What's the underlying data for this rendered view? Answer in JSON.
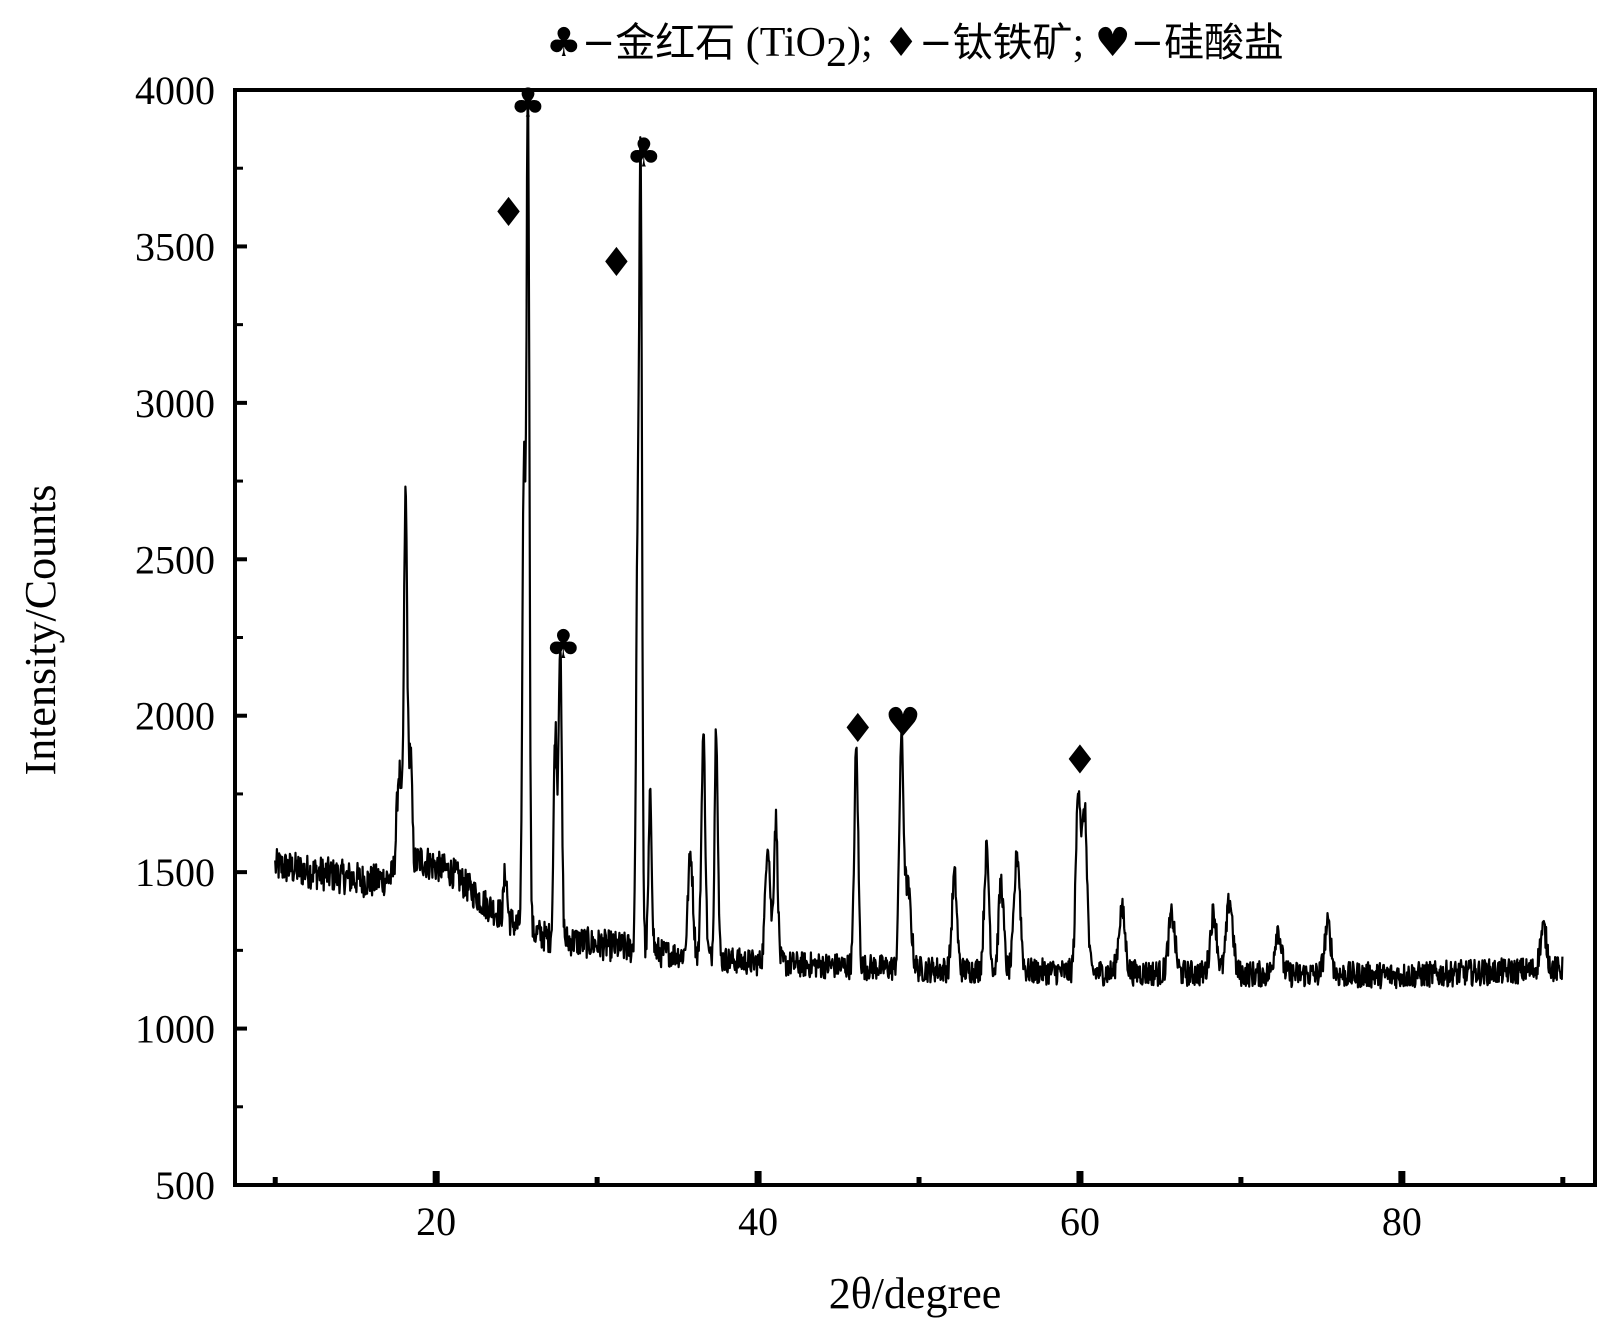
{
  "chart_data": {
    "type": "line",
    "xlabel": "2θ/degree",
    "ylabel": "Intensity/Counts",
    "xlim": [
      7.5,
      92
    ],
    "ylim": [
      500,
      4000
    ],
    "x_ticks": [
      20,
      40,
      60,
      80
    ],
    "y_ticks": [
      500,
      1000,
      1500,
      2000,
      2500,
      3000,
      3500,
      4000
    ],
    "legend": [
      {
        "symbol": "♣",
        "dash": "−",
        "label": "金红石",
        "formula_parts": [
          " (TiO",
          "2",
          ")"
        ],
        "sep": ";"
      },
      {
        "symbol": "♦",
        "dash": "−",
        "label": "钛铁矿",
        "sep": ";"
      },
      {
        "symbol": "♥",
        "dash": "−",
        "label": "硅酸盐"
      }
    ],
    "baseline": [
      [
        10,
        1520
      ],
      [
        16,
        1470
      ],
      [
        17.8,
        1490
      ],
      [
        19,
        1540
      ],
      [
        21,
        1500
      ],
      [
        23,
        1400
      ],
      [
        25,
        1330
      ],
      [
        27,
        1290
      ],
      [
        30,
        1270
      ],
      [
        33,
        1250
      ],
      [
        36,
        1230
      ],
      [
        40,
        1210
      ],
      [
        45,
        1200
      ],
      [
        50,
        1190
      ],
      [
        55,
        1185
      ],
      [
        60,
        1180
      ],
      [
        70,
        1175
      ],
      [
        80,
        1170
      ],
      [
        90,
        1190
      ]
    ],
    "peaks": [
      {
        "x": 17.7,
        "y": 1820,
        "w": 0.15
      },
      {
        "x": 18.1,
        "y": 2700,
        "w": 0.1
      },
      {
        "x": 18.4,
        "y": 1880,
        "w": 0.1
      },
      {
        "x": 24.3,
        "y": 1500,
        "w": 0.1
      },
      {
        "x": 25.7,
        "y": 4000,
        "w": 0.09
      },
      {
        "x": 25.45,
        "y": 2800,
        "w": 0.09
      },
      {
        "x": 27.4,
        "y": 1950,
        "w": 0.1
      },
      {
        "x": 27.7,
        "y": 2230,
        "w": 0.1
      },
      {
        "x": 32.7,
        "y": 3710,
        "w": 0.09
      },
      {
        "x": 32.5,
        "y": 2400,
        "w": 0.09
      },
      {
        "x": 33.3,
        "y": 1730,
        "w": 0.1
      },
      {
        "x": 35.8,
        "y": 1560,
        "w": 0.15
      },
      {
        "x": 36.6,
        "y": 1940,
        "w": 0.12
      },
      {
        "x": 37.4,
        "y": 1970,
        "w": 0.1
      },
      {
        "x": 40.6,
        "y": 1600,
        "w": 0.15
      },
      {
        "x": 41.1,
        "y": 1670,
        "w": 0.12
      },
      {
        "x": 46.1,
        "y": 1890,
        "w": 0.12
      },
      {
        "x": 48.9,
        "y": 1900,
        "w": 0.13
      },
      {
        "x": 49.3,
        "y": 1450,
        "w": 0.2
      },
      {
        "x": 52.2,
        "y": 1490,
        "w": 0.15
      },
      {
        "x": 54.2,
        "y": 1570,
        "w": 0.15
      },
      {
        "x": 55.1,
        "y": 1470,
        "w": 0.15
      },
      {
        "x": 56.1,
        "y": 1560,
        "w": 0.18
      },
      {
        "x": 59.9,
        "y": 1770,
        "w": 0.15
      },
      {
        "x": 60.3,
        "y": 1680,
        "w": 0.15
      },
      {
        "x": 62.6,
        "y": 1380,
        "w": 0.2
      },
      {
        "x": 65.7,
        "y": 1360,
        "w": 0.2
      },
      {
        "x": 68.3,
        "y": 1370,
        "w": 0.2
      },
      {
        "x": 69.3,
        "y": 1410,
        "w": 0.2
      },
      {
        "x": 72.3,
        "y": 1320,
        "w": 0.2
      },
      {
        "x": 75.4,
        "y": 1330,
        "w": 0.2
      },
      {
        "x": 88.8,
        "y": 1320,
        "w": 0.2
      }
    ],
    "annotations": [
      {
        "symbol": "♦",
        "x": 24.5,
        "y": 3610
      },
      {
        "symbol": "♣",
        "x": 25.7,
        "y": 3960
      },
      {
        "symbol": "♣",
        "x": 27.9,
        "y": 2230
      },
      {
        "symbol": "♦",
        "x": 31.2,
        "y": 3450
      },
      {
        "symbol": "♣",
        "x": 32.9,
        "y": 3800
      },
      {
        "symbol": "♦",
        "x": 46.2,
        "y": 1960
      },
      {
        "symbol": "♥",
        "x": 49.0,
        "y": 1980
      },
      {
        "symbol": "♦",
        "x": 60.0,
        "y": 1860
      }
    ]
  }
}
